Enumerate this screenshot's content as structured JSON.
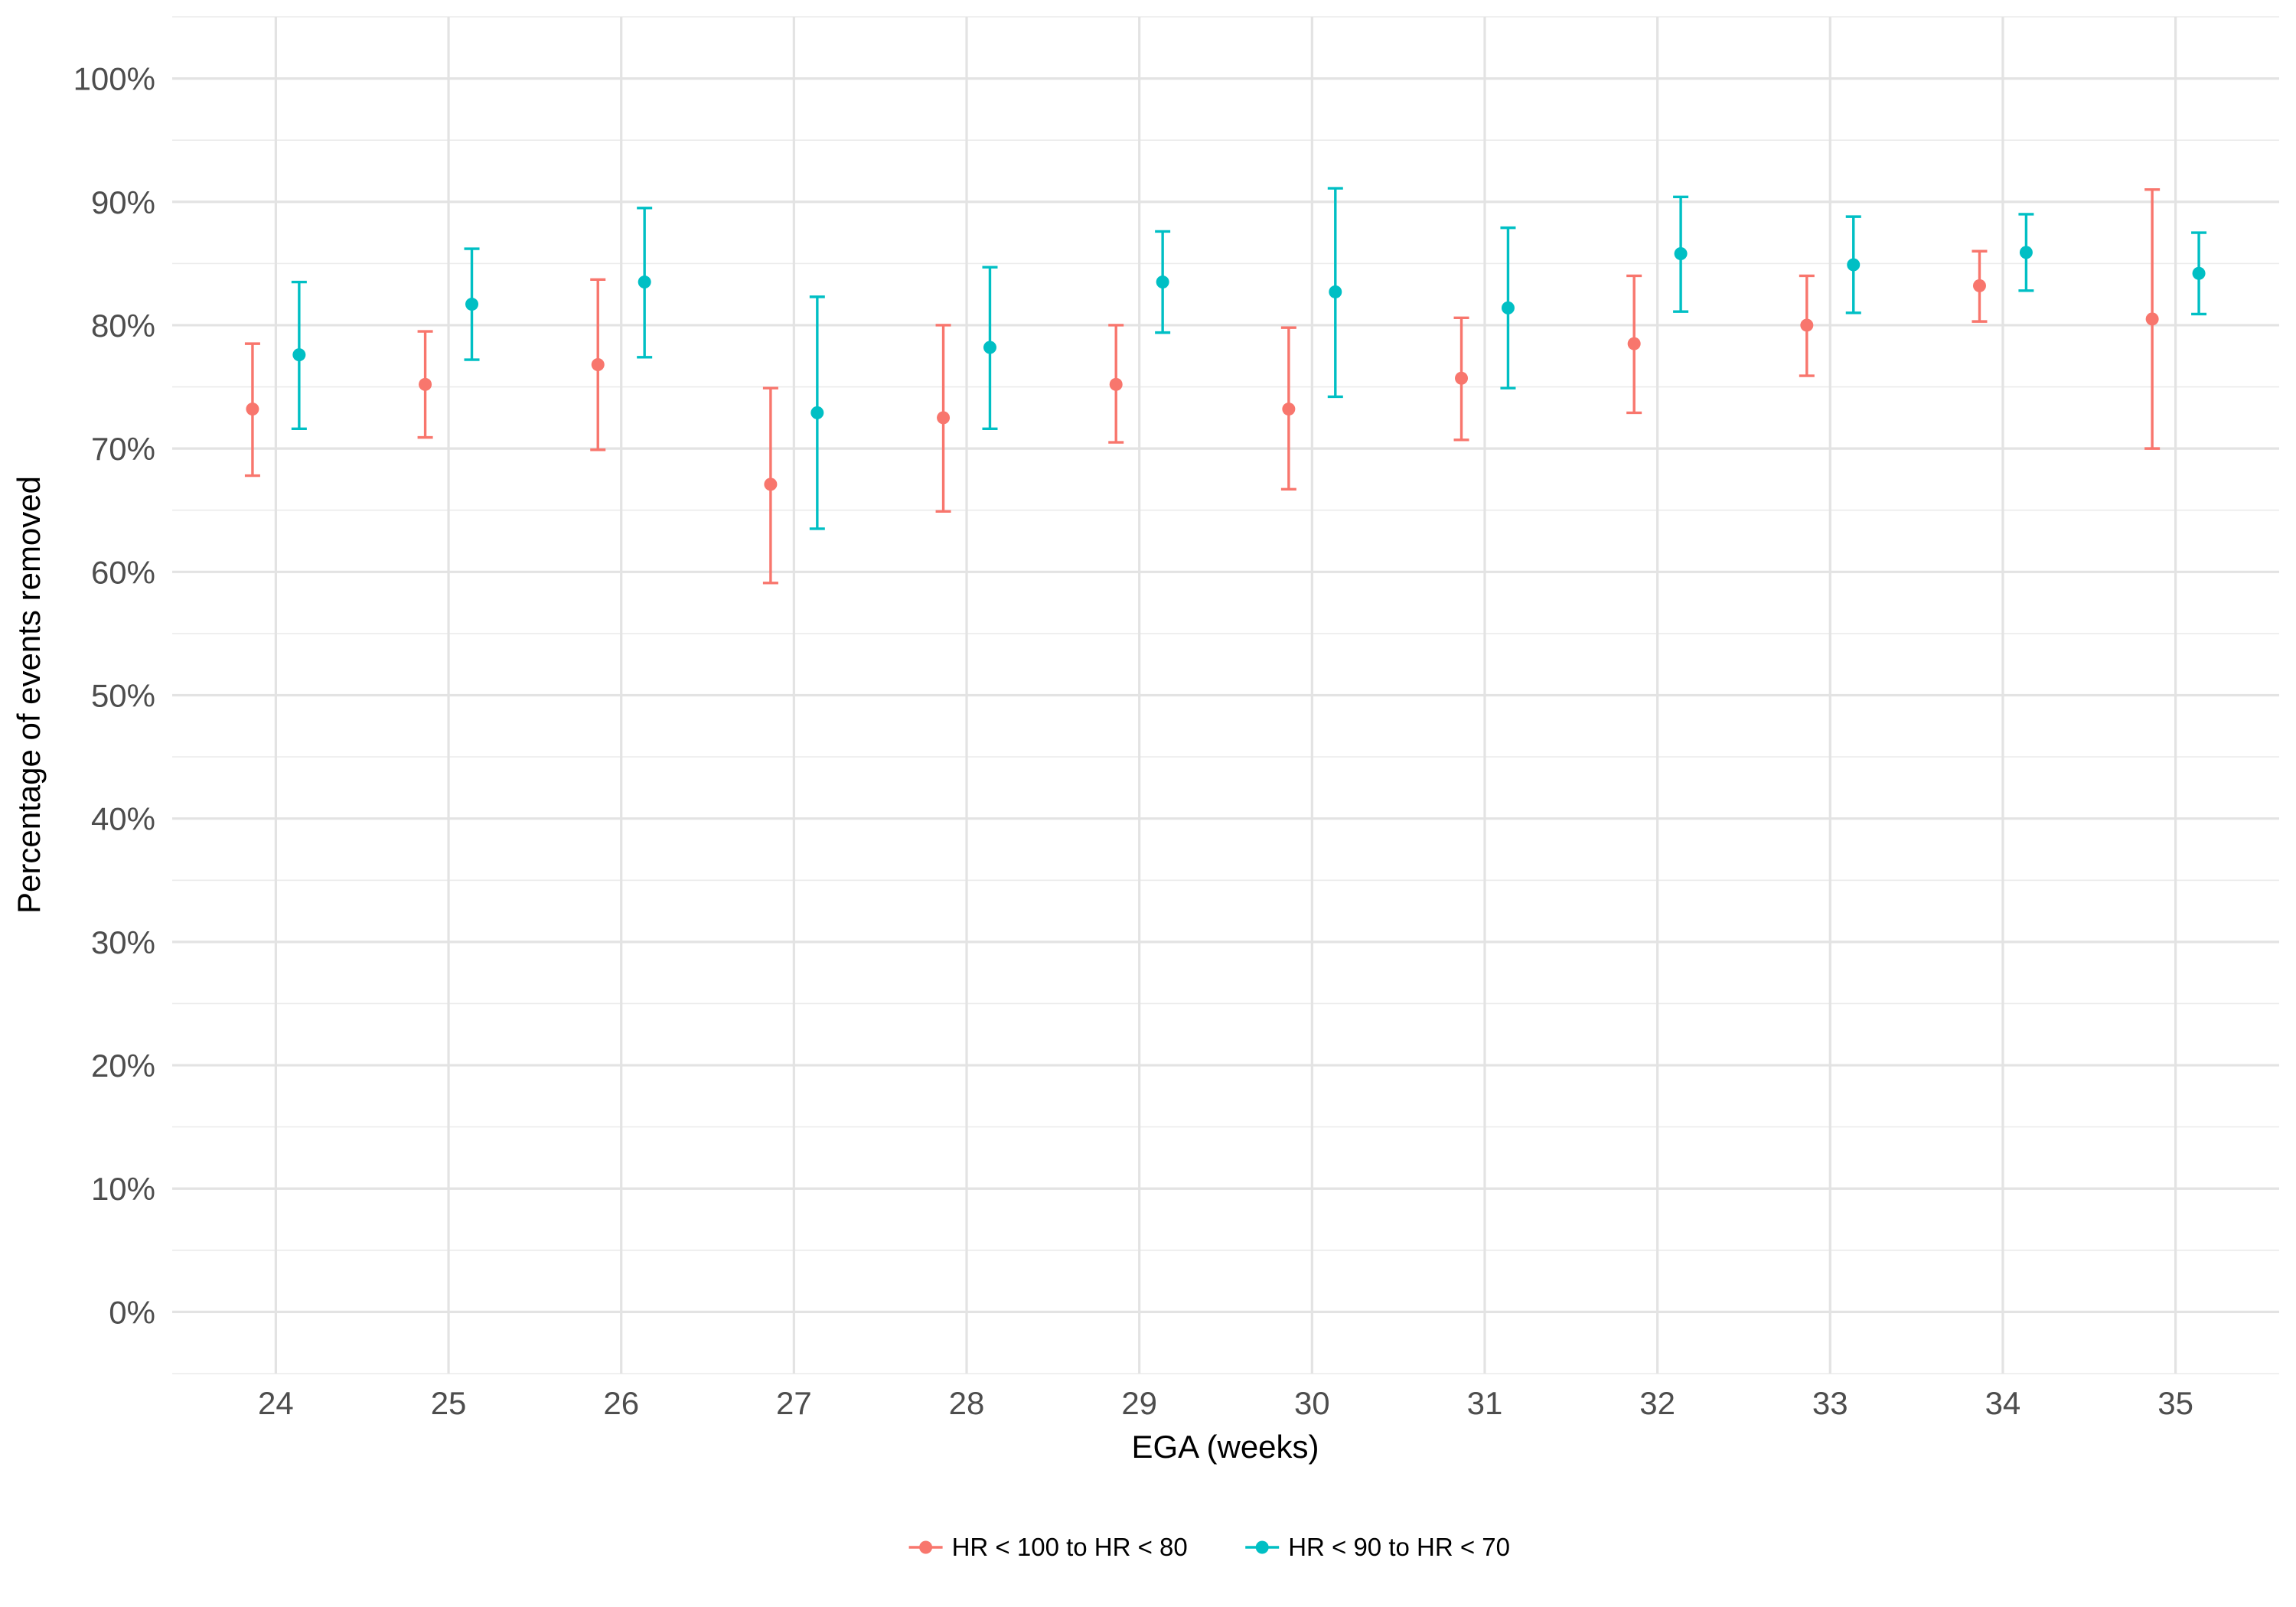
{
  "chart_data": {
    "type": "scatter",
    "subtype": "point-with-error-bars",
    "xlabel": "EGA (weeks)",
    "ylabel": "Percentage of events removed",
    "categories": [
      "24",
      "25",
      "26",
      "27",
      "28",
      "29",
      "30",
      "31",
      "32",
      "33",
      "34",
      "35"
    ],
    "ylim": [
      -5,
      105
    ],
    "y_ticks": [
      0,
      10,
      20,
      30,
      40,
      50,
      60,
      70,
      80,
      90,
      100
    ],
    "y_tick_labels": [
      "0%",
      "10%",
      "20%",
      "30%",
      "40%",
      "50%",
      "60%",
      "70%",
      "80%",
      "90%",
      "100%"
    ],
    "grid": true,
    "legend_position": "bottom",
    "series": [
      {
        "name": "HR < 100 to HR < 80",
        "color": "#F8766D",
        "values": [
          73.2,
          75.2,
          76.8,
          67.1,
          72.5,
          75.2,
          73.2,
          75.7,
          78.5,
          80.0,
          83.2,
          80.5
        ],
        "lower": [
          67.8,
          70.9,
          69.9,
          59.1,
          64.9,
          70.5,
          66.7,
          70.7,
          72.9,
          75.9,
          80.3,
          70.0
        ],
        "upper": [
          78.5,
          79.5,
          83.7,
          74.9,
          80.0,
          80.0,
          79.8,
          80.6,
          84.0,
          84.0,
          86.0,
          91.0
        ]
      },
      {
        "name": "HR < 90 to HR < 70",
        "color": "#00BFC4",
        "values": [
          77.6,
          81.7,
          83.5,
          72.9,
          78.2,
          83.5,
          82.7,
          81.4,
          85.8,
          84.9,
          85.9,
          84.2
        ],
        "lower": [
          71.6,
          77.2,
          77.4,
          63.5,
          71.6,
          79.4,
          74.2,
          74.9,
          81.1,
          81.0,
          82.8,
          80.9
        ],
        "upper": [
          83.5,
          86.2,
          89.5,
          82.3,
          84.7,
          87.6,
          91.1,
          87.9,
          90.4,
          88.8,
          89.0,
          87.5
        ]
      }
    ]
  }
}
